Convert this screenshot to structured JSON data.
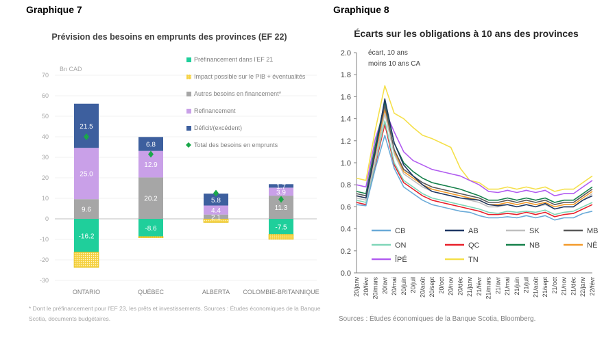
{
  "panels": {
    "left_label": "Graphique 7",
    "right_label": "Graphique 8"
  },
  "chart_data": [
    {
      "type": "bar",
      "title": "Prévision des besoins en emprunts des provinces (EF 22)",
      "ylabel": "Bn CAD",
      "ylim": [
        -30,
        70
      ],
      "yticks": [
        70,
        60,
        50,
        40,
        30,
        20,
        10,
        0,
        -10,
        -20,
        -30
      ],
      "categories": [
        "ONTARIO",
        "QUÉBEC",
        "ALBERTA",
        "COLOMBIE-BRITANNIQUE"
      ],
      "stacked": true,
      "series": [
        {
          "name": "Préfinancement dans l'EF 21",
          "color": "#1fcf9b",
          "pattern": "solid",
          "values": [
            -16.2,
            -8.6,
            0,
            -7.5
          ],
          "labels": [
            "-16.2",
            "-8.6",
            "",
            "-7.5"
          ]
        },
        {
          "name": "Impact possible sur le PIB + éventualités",
          "color": "#f5d142",
          "pattern": "dots",
          "values": [
            -7.5,
            -0.6,
            -1.8,
            -2.5
          ],
          "labels": [
            "",
            "",
            "",
            ""
          ]
        },
        {
          "name": "Autres besoins en financement*",
          "color": "#a6a6a6",
          "pattern": "solid",
          "values": [
            9.6,
            20.2,
            2.1,
            11.3
          ],
          "labels": [
            "9.6",
            "20.2",
            "2.1",
            "11.3"
          ]
        },
        {
          "name": "Refinancement",
          "color": "#c9a0e8",
          "pattern": "solid",
          "values": [
            25.0,
            12.9,
            4.4,
            3.9
          ],
          "labels": [
            "25.0",
            "12.9",
            "4.4",
            "3.9"
          ]
        },
        {
          "name": "Déficit/(excédent)",
          "color": "#3d5f9e",
          "pattern": "solid",
          "values": [
            21.5,
            6.8,
            5.8,
            1.7
          ],
          "labels": [
            "21.5",
            "6.8",
            "5.8",
            "1.7"
          ]
        }
      ],
      "markers": {
        "name": "Total des besoins en emprunts",
        "color": "#1aa84a",
        "values": [
          40.0,
          31.5,
          12.5,
          9.5
        ]
      },
      "legend_position": "top-right",
      "note": "* Dont le préfinancement pour l'EF 23, les prêts et investissements. Sources : Études économiques de la Banque Scotia, documents budgétaires."
    },
    {
      "type": "line",
      "title": "Écarts sur les obligations à 10 ans des provinces",
      "ylabel": "écart, 10 ans moins 10 ans CA",
      "ylim": [
        0.0,
        2.0
      ],
      "yticks": [
        "2.0",
        "1.8",
        "1.6",
        "1.4",
        "1.2",
        "1.0",
        "0.8",
        "0.6",
        "0.4",
        "0.2",
        "0.0"
      ],
      "x": [
        "20/janv",
        "20/févr",
        "20/mars",
        "20/avr",
        "20/mai",
        "20/juin",
        "20/juil",
        "20/août",
        "20/sept",
        "20/oct",
        "20/nov",
        "20/déc",
        "21/janv",
        "21/févr",
        "21/mars",
        "21/avr",
        "21/mai",
        "21/juin",
        "21/juil",
        "21/août",
        "21/sept",
        "21/oct",
        "21/nov",
        "21/déc",
        "22/janv",
        "22/févr"
      ],
      "series": [
        {
          "name": "CB",
          "color": "#6aaad8",
          "values": [
            0.62,
            0.61,
            0.95,
            1.25,
            0.95,
            0.78,
            0.72,
            0.66,
            0.62,
            0.6,
            0.58,
            0.56,
            0.55,
            0.52,
            0.5,
            0.5,
            0.51,
            0.5,
            0.52,
            0.5,
            0.52,
            0.48,
            0.5,
            0.5,
            0.54,
            0.56
          ]
        },
        {
          "name": "AB",
          "color": "#1f3864",
          "values": [
            0.7,
            0.68,
            1.1,
            1.58,
            1.18,
            0.98,
            0.88,
            0.8,
            0.74,
            0.72,
            0.7,
            0.68,
            0.67,
            0.66,
            0.62,
            0.61,
            0.62,
            0.6,
            0.62,
            0.6,
            0.63,
            0.58,
            0.6,
            0.6,
            0.66,
            0.7
          ]
        },
        {
          "name": "SK",
          "color": "#bfbfbf",
          "values": [
            0.68,
            0.66,
            1.02,
            1.45,
            1.08,
            0.9,
            0.84,
            0.78,
            0.74,
            0.72,
            0.7,
            0.68,
            0.66,
            0.64,
            0.6,
            0.6,
            0.62,
            0.6,
            0.62,
            0.6,
            0.62,
            0.58,
            0.6,
            0.6,
            0.66,
            0.72
          ]
        },
        {
          "name": "MB",
          "color": "#595959",
          "values": [
            0.72,
            0.7,
            1.12,
            1.52,
            1.12,
            0.94,
            0.88,
            0.82,
            0.78,
            0.76,
            0.74,
            0.72,
            0.7,
            0.68,
            0.64,
            0.64,
            0.66,
            0.64,
            0.66,
            0.64,
            0.66,
            0.62,
            0.64,
            0.64,
            0.7,
            0.76
          ]
        },
        {
          "name": "ON",
          "color": "#7fd6b8",
          "values": [
            0.66,
            0.64,
            1.0,
            1.38,
            1.0,
            0.84,
            0.78,
            0.72,
            0.68,
            0.66,
            0.64,
            0.62,
            0.6,
            0.58,
            0.55,
            0.54,
            0.56,
            0.55,
            0.56,
            0.55,
            0.57,
            0.53,
            0.55,
            0.56,
            0.6,
            0.64
          ]
        },
        {
          "name": "QC",
          "color": "#e8202a",
          "values": [
            0.64,
            0.62,
            0.98,
            1.35,
            0.98,
            0.82,
            0.76,
            0.7,
            0.66,
            0.64,
            0.62,
            0.6,
            0.58,
            0.56,
            0.53,
            0.53,
            0.54,
            0.53,
            0.55,
            0.53,
            0.55,
            0.51,
            0.53,
            0.54,
            0.58,
            0.62
          ]
        },
        {
          "name": "NB",
          "color": "#15804a",
          "values": [
            0.74,
            0.72,
            1.16,
            1.55,
            1.18,
            1.0,
            0.92,
            0.86,
            0.82,
            0.8,
            0.78,
            0.76,
            0.73,
            0.7,
            0.66,
            0.66,
            0.68,
            0.66,
            0.68,
            0.66,
            0.68,
            0.64,
            0.66,
            0.66,
            0.72,
            0.78
          ]
        },
        {
          "name": "NÉ",
          "color": "#f39a2b",
          "values": [
            0.7,
            0.68,
            1.08,
            1.48,
            1.1,
            0.92,
            0.86,
            0.8,
            0.76,
            0.74,
            0.72,
            0.7,
            0.68,
            0.66,
            0.62,
            0.62,
            0.64,
            0.62,
            0.64,
            0.62,
            0.64,
            0.6,
            0.62,
            0.62,
            0.68,
            0.74
          ]
        },
        {
          "name": "ÎPÉ",
          "color": "#b15cf0",
          "values": [
            0.8,
            0.78,
            1.22,
            1.48,
            1.28,
            1.1,
            1.02,
            0.98,
            0.94,
            0.92,
            0.9,
            0.88,
            0.84,
            0.8,
            0.74,
            0.73,
            0.75,
            0.73,
            0.75,
            0.73,
            0.75,
            0.7,
            0.72,
            0.72,
            0.78,
            0.84
          ]
        },
        {
          "name": "TN",
          "color": "#f5e04a",
          "values": [
            0.86,
            0.84,
            1.3,
            1.7,
            1.45,
            1.4,
            1.32,
            1.25,
            1.22,
            1.18,
            1.14,
            0.95,
            0.84,
            0.82,
            0.76,
            0.76,
            0.78,
            0.76,
            0.78,
            0.76,
            0.78,
            0.74,
            0.76,
            0.76,
            0.82,
            0.88
          ]
        }
      ],
      "legend_position": "bottom-inside",
      "source": "Sources : Études économiques de la Banque Scotia, Bloomberg."
    }
  ]
}
